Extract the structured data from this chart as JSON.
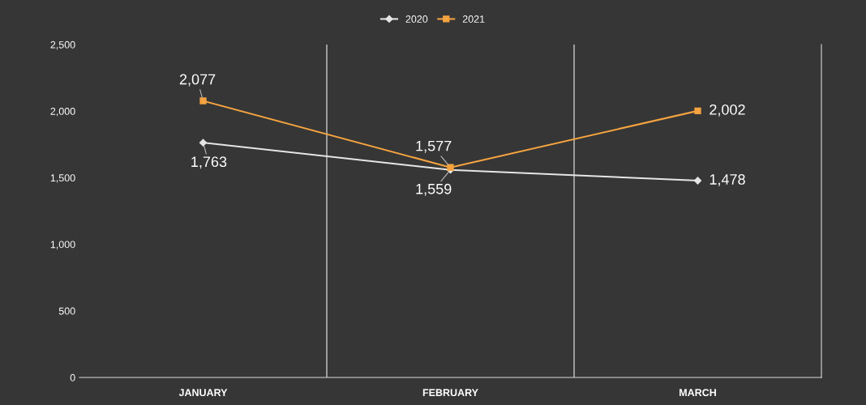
{
  "chart_data": {
    "type": "line",
    "categories": [
      "JANUARY",
      "FEBRUARY",
      "MARCH"
    ],
    "series": [
      {
        "name": "2020",
        "color": "#e6e6e6",
        "values": [
          1763,
          1559,
          1478
        ],
        "value_labels": [
          "1,763",
          "1,559",
          "1,478"
        ],
        "marker": "diamond"
      },
      {
        "name": "2021",
        "color": "#f4a340",
        "values": [
          2077,
          1577,
          2002
        ],
        "value_labels": [
          "2,077",
          "1,577",
          "2,002"
        ],
        "marker": "square"
      }
    ],
    "ylim": [
      0,
      2500
    ],
    "yticks": [
      {
        "value": 0,
        "label": "0"
      },
      {
        "value": 500,
        "label": "500"
      },
      {
        "value": 1000,
        "label": "1,000"
      },
      {
        "value": 1500,
        "label": "1,500"
      },
      {
        "value": 2000,
        "label": "2,000"
      },
      {
        "value": 2500,
        "label": "2,500"
      }
    ],
    "grid": "x",
    "legend": "top",
    "line_style": "solid"
  }
}
